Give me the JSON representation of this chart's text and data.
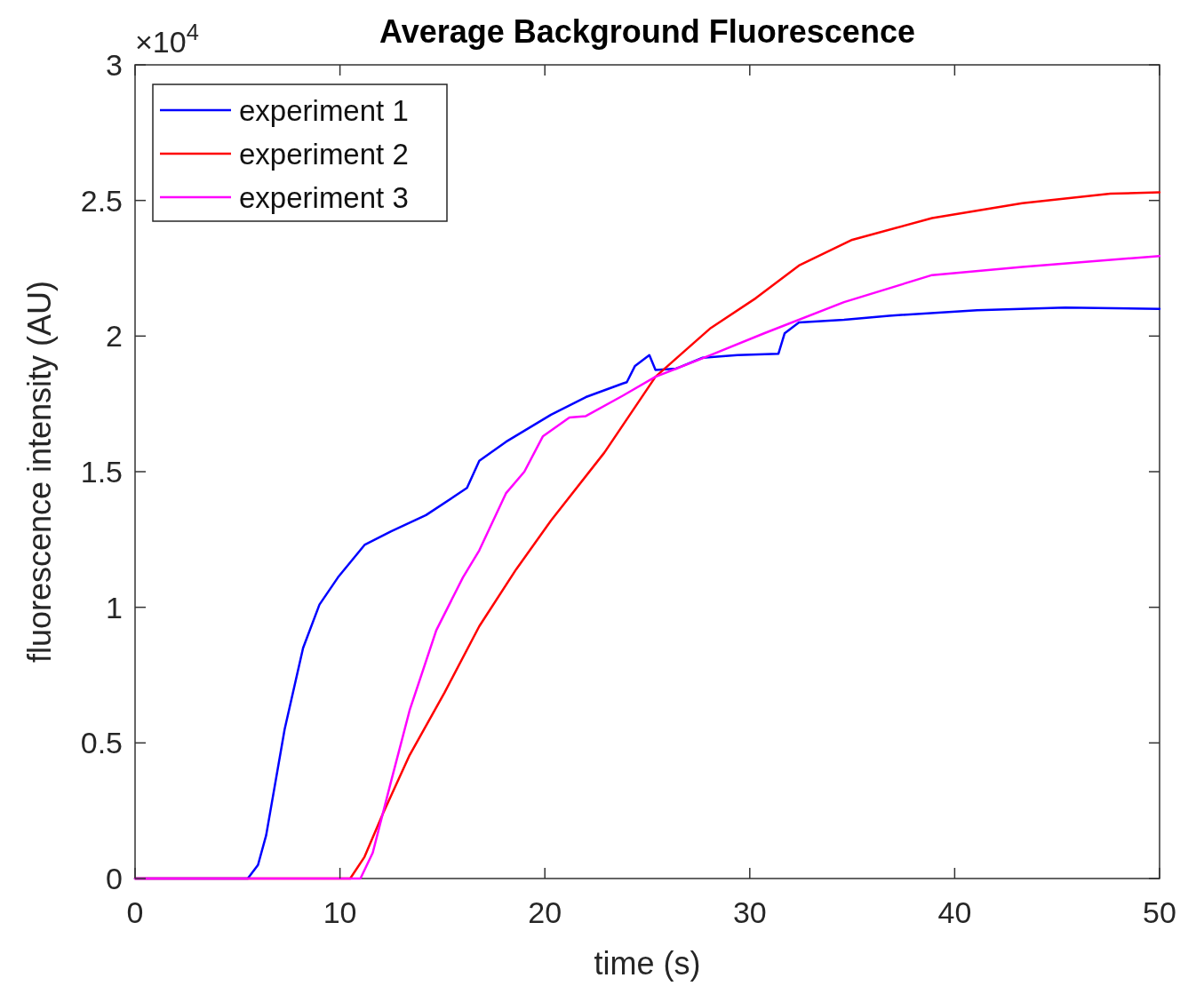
{
  "chart_data": {
    "type": "line",
    "title": "Average Background Fluorescence",
    "xlabel": "time (s)",
    "ylabel": "fluorescence intensity (AU)",
    "annotations": [
      "×10$^{4}$"
    ],
    "xlim": [
      0,
      50
    ],
    "xticks": [
      0,
      10,
      20,
      30,
      40,
      50
    ],
    "ylim": [
      0,
      3
    ],
    "yticks": [
      0,
      0.5,
      1,
      1.5,
      2,
      2.5,
      3
    ],
    "grid": false,
    "legend": "top left",
    "line_style": "solid",
    "marker": "none",
    "series": [
      {
        "name": "experiment 1",
        "color": "#0000ff",
        "x": [
          0,
          5.5,
          6,
          6.4,
          7.3,
          8.2,
          9,
          9.9,
          11.2,
          12.5,
          14.2,
          16.2,
          16.8,
          18.1,
          20.3,
          22,
          23.8,
          24,
          24.4,
          25.1,
          25.4,
          26.4,
          27.7,
          29.4,
          31.4,
          31.7,
          32.4,
          34.6,
          36.8,
          41.1,
          45.4,
          50
        ],
        "values": [
          0,
          0,
          0.05,
          0.16,
          0.55,
          0.85,
          1.01,
          1.11,
          1.23,
          1.28,
          1.34,
          1.44,
          1.54,
          1.61,
          1.71,
          1.775,
          1.825,
          1.83,
          1.89,
          1.93,
          1.875,
          1.88,
          1.92,
          1.93,
          1.935,
          2.01,
          2.05,
          2.06,
          2.075,
          2.095,
          2.105,
          2.1
        ]
      },
      {
        "name": "experiment 2",
        "color": "#ff0000",
        "x": [
          0,
          10.5,
          11.2,
          12.1,
          13.4,
          15.1,
          16.8,
          18.6,
          20.3,
          22.9,
          25.4,
          28.1,
          30.3,
          32.4,
          35,
          38.9,
          43.3,
          47.6,
          50
        ],
        "values": [
          0,
          0,
          0.08,
          0.24,
          0.455,
          0.685,
          0.93,
          1.14,
          1.32,
          1.57,
          1.85,
          2.03,
          2.14,
          2.26,
          2.355,
          2.435,
          2.49,
          2.525,
          2.53
        ]
      },
      {
        "name": "experiment 3",
        "color": "#ff00ff",
        "x": [
          0,
          11,
          11.6,
          12.5,
          13.4,
          14.7,
          16,
          16.8,
          18.1,
          19,
          19.9,
          21.2,
          22,
          23.8,
          25.4,
          28.1,
          30.7,
          34.6,
          38.9,
          43.3,
          50
        ],
        "values": [
          0,
          0,
          0.095,
          0.36,
          0.62,
          0.915,
          1.11,
          1.21,
          1.42,
          1.5,
          1.63,
          1.7,
          1.705,
          1.78,
          1.85,
          1.93,
          2.01,
          2.125,
          2.225,
          2.255,
          2.295
        ]
      }
    ]
  }
}
